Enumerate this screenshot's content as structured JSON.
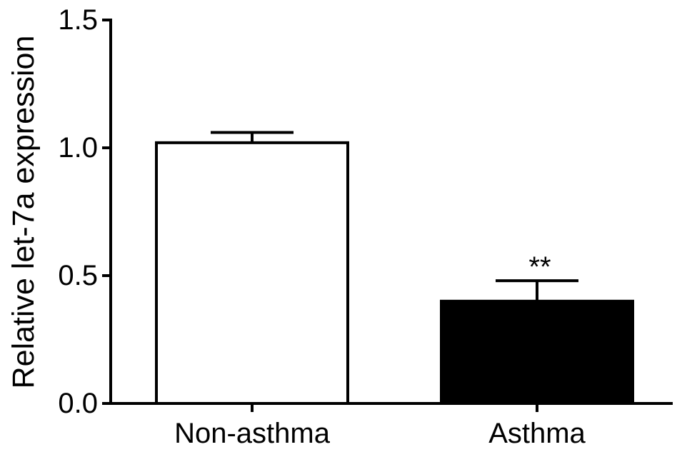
{
  "chart_data": {
    "type": "bar",
    "categories": [
      "Non-asthma",
      "Asthma"
    ],
    "values": [
      1.02,
      0.4
    ],
    "errors": [
      0.04,
      0.08
    ],
    "significance": [
      "",
      "**"
    ],
    "bar_colors": [
      "#ffffff",
      "#000000"
    ],
    "edge_color": "#000000",
    "ylabel": "Relative let-7a expression",
    "ylim": [
      0,
      1.5
    ],
    "yticks": [
      0,
      0.5,
      1.0,
      1.5
    ],
    "ytick_labels": [
      "0.0",
      "0.5",
      "1.0",
      "1.5"
    ],
    "grid": false
  }
}
